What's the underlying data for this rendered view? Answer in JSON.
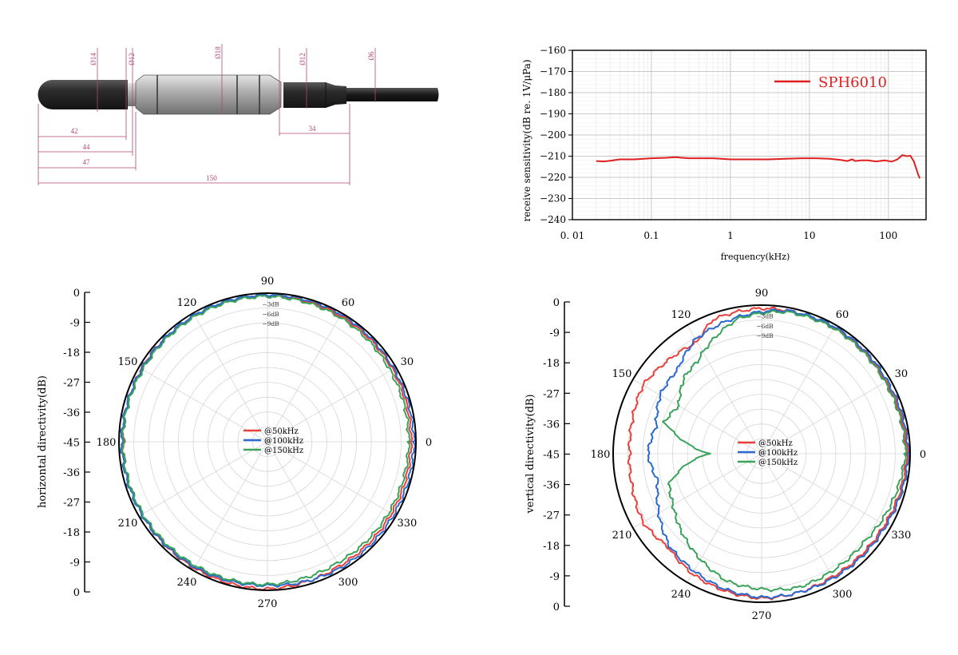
{
  "drawing": {
    "diameters": [
      "Ø14",
      "Ø12",
      "Ø18",
      "Ø12",
      "Ø6"
    ],
    "lengths": [
      "42",
      "44",
      "47",
      "150",
      "34"
    ],
    "colors": {
      "dim": "#b04878",
      "rubber": "#2e2e2e",
      "steel": "#a9a9a9",
      "cable": "#1c1c1c"
    }
  },
  "chart_data": [
    {
      "type": "line",
      "xscale": "log",
      "xlabel": "frequency(kHz)",
      "ylabel": "receive sensitivity(dB re. 1V/μPa)",
      "xlim": [
        0.01,
        300
      ],
      "ylim": [
        -240,
        -160
      ],
      "xticks": [
        "0.01",
        "0.1",
        "1",
        "10",
        "100"
      ],
      "yticks": [
        "-160",
        "-170",
        "-180",
        "-190",
        "-200",
        "-210",
        "-220",
        "-230",
        "-240"
      ],
      "grid": true,
      "legend_position": "top-right",
      "series": [
        {
          "name": "SPH6010",
          "color": "#e02020",
          "points": [
            [
              0.02,
              -212.3
            ],
            [
              0.025,
              -212.5
            ],
            [
              0.03,
              -212.2
            ],
            [
              0.04,
              -211.5
            ],
            [
              0.05,
              -211.5
            ],
            [
              0.06,
              -211.5
            ],
            [
              0.08,
              -211.2
            ],
            [
              0.1,
              -211.0
            ],
            [
              0.15,
              -210.8
            ],
            [
              0.2,
              -210.5
            ],
            [
              0.25,
              -210.8
            ],
            [
              0.3,
              -211.0
            ],
            [
              0.4,
              -211.0
            ],
            [
              0.6,
              -211.0
            ],
            [
              0.8,
              -211.3
            ],
            [
              1,
              -211.5
            ],
            [
              2,
              -211.5
            ],
            [
              3,
              -211.5
            ],
            [
              5,
              -211.2
            ],
            [
              8,
              -211.0
            ],
            [
              12,
              -211.0
            ],
            [
              18,
              -211.2
            ],
            [
              25,
              -211.8
            ],
            [
              30,
              -212.3
            ],
            [
              35,
              -211.5
            ],
            [
              38,
              -212.3
            ],
            [
              45,
              -212.0
            ],
            [
              55,
              -212.0
            ],
            [
              70,
              -212.5
            ],
            [
              90,
              -212.0
            ],
            [
              110,
              -212.6
            ],
            [
              130,
              -211.5
            ],
            [
              150,
              -209.5
            ],
            [
              170,
              -210.0
            ],
            [
              190,
              -209.8
            ],
            [
              210,
              -212.5
            ],
            [
              240,
              -219.0
            ],
            [
              250,
              -220.5
            ]
          ]
        }
      ]
    },
    {
      "type": "polar",
      "ylabel": "horizontal directivity(dB)",
      "rlim": [
        -45,
        0
      ],
      "rticks": [
        "0",
        "-9",
        "-18",
        "-27",
        "-36",
        "-45",
        "-36",
        "-27",
        "-18",
        "-9",
        "0"
      ],
      "angle_labels": [
        "0",
        "30",
        "60",
        "90",
        "120",
        "150",
        "180",
        "210",
        "240",
        "270",
        "300",
        "330"
      ],
      "ring_labels": [
        "-3dB",
        "-6dB",
        "-9dB"
      ],
      "legend_position": "center",
      "series": [
        {
          "name": "@50kHz",
          "color": "#e8403a",
          "dB": [
            [
              0,
              -1.5
            ],
            [
              30,
              -1.2
            ],
            [
              60,
              -0.9
            ],
            [
              90,
              -0.6
            ],
            [
              120,
              -0.8
            ],
            [
              150,
              -0.8
            ],
            [
              180,
              -1.4
            ],
            [
              210,
              -1.0
            ],
            [
              240,
              -0.8
            ],
            [
              270,
              -0.4
            ],
            [
              300,
              -1.5
            ],
            [
              330,
              -1.6
            ],
            [
              360,
              -1.5
            ]
          ]
        },
        {
          "name": "@100kHz",
          "color": "#2a6ad0",
          "dB": [
            [
              0,
              -0.6
            ],
            [
              30,
              -0.8
            ],
            [
              60,
              -0.4
            ],
            [
              90,
              -0.5
            ],
            [
              120,
              -0.7
            ],
            [
              150,
              -1.0
            ],
            [
              180,
              -0.8
            ],
            [
              210,
              -1.0
            ],
            [
              240,
              -1.1
            ],
            [
              270,
              -1.5
            ],
            [
              300,
              -0.8
            ],
            [
              330,
              -0.8
            ],
            [
              360,
              -0.6
            ]
          ]
        },
        {
          "name": "@150kHz",
          "color": "#3aa35a",
          "dB": [
            [
              0,
              -2.2
            ],
            [
              30,
              -2.0
            ],
            [
              60,
              -1.4
            ],
            [
              90,
              -1.0
            ],
            [
              120,
              -1.2
            ],
            [
              150,
              -1.4
            ],
            [
              180,
              -1.2
            ],
            [
              210,
              -1.4
            ],
            [
              240,
              -1.6
            ],
            [
              270,
              -1.8
            ],
            [
              300,
              -2.6
            ],
            [
              330,
              -2.4
            ],
            [
              360,
              -2.2
            ]
          ]
        }
      ]
    },
    {
      "type": "polar",
      "ylabel": "vertical directivity(dB)",
      "rlim": [
        -45,
        0
      ],
      "rticks": [
        "0",
        "-9",
        "-18",
        "-27",
        "-36",
        "-45",
        "-36",
        "-27",
        "-18",
        "-9",
        "0"
      ],
      "angle_labels": [
        "0",
        "30",
        "60",
        "90",
        "120",
        "150",
        "180",
        "210",
        "240",
        "270",
        "300",
        "330"
      ],
      "ring_labels": [
        "-3dB",
        "-6dB",
        "-9dB"
      ],
      "legend_position": "center",
      "series": [
        {
          "name": "@50kHz",
          "color": "#e8403a",
          "dB": [
            [
              0,
              -1.0
            ],
            [
              30,
              -1.5
            ],
            [
              60,
              -0.8
            ],
            [
              90,
              -1.0
            ],
            [
              110,
              -1.8
            ],
            [
              120,
              -6.0
            ],
            [
              135,
              -5.0
            ],
            [
              150,
              -3.5
            ],
            [
              165,
              -4.5
            ],
            [
              180,
              -5.0
            ],
            [
              195,
              -4.5
            ],
            [
              210,
              -3.5
            ],
            [
              225,
              -5.0
            ],
            [
              240,
              -3.0
            ],
            [
              255,
              -2.0
            ],
            [
              270,
              -1.2
            ],
            [
              285,
              -1.5
            ],
            [
              300,
              -2.0
            ],
            [
              330,
              -2.0
            ],
            [
              360,
              -1.0
            ]
          ]
        },
        {
          "name": "@100kHz",
          "color": "#2a6ad0",
          "dB": [
            [
              0,
              -0.5
            ],
            [
              30,
              -1.0
            ],
            [
              60,
              -0.6
            ],
            [
              80,
              -1.0
            ],
            [
              100,
              -3.0
            ],
            [
              120,
              -5.0
            ],
            [
              135,
              -9.0
            ],
            [
              150,
              -9.5
            ],
            [
              165,
              -12.0
            ],
            [
              180,
              -10.5
            ],
            [
              195,
              -12.5
            ],
            [
              210,
              -9.0
            ],
            [
              225,
              -5.5
            ],
            [
              240,
              -4.0
            ],
            [
              255,
              -2.5
            ],
            [
              270,
              -1.5
            ],
            [
              285,
              -1.5
            ],
            [
              300,
              -1.5
            ],
            [
              330,
              -1.5
            ],
            [
              360,
              -0.5
            ]
          ]
        },
        {
          "name": "@150kHz",
          "color": "#3aa35a",
          "dB": [
            [
              0,
              -1.5
            ],
            [
              30,
              -1.8
            ],
            [
              60,
              -1.2
            ],
            [
              80,
              -1.4
            ],
            [
              100,
              -3.5
            ],
            [
              115,
              -8.0
            ],
            [
              125,
              -11.0
            ],
            [
              135,
              -12.0
            ],
            [
              150,
              -16.0
            ],
            [
              162,
              -14.0
            ],
            [
              172,
              -22.0
            ],
            [
              180,
              -29.0
            ],
            [
              188,
              -22.0
            ],
            [
              198,
              -15.5
            ],
            [
              210,
              -14.0
            ],
            [
              225,
              -11.0
            ],
            [
              240,
              -8.0
            ],
            [
              255,
              -5.0
            ],
            [
              270,
              -4.0
            ],
            [
              285,
              -3.0
            ],
            [
              300,
              -3.5
            ],
            [
              320,
              -4.0
            ],
            [
              345,
              -2.5
            ],
            [
              360,
              -1.5
            ]
          ]
        }
      ]
    }
  ]
}
